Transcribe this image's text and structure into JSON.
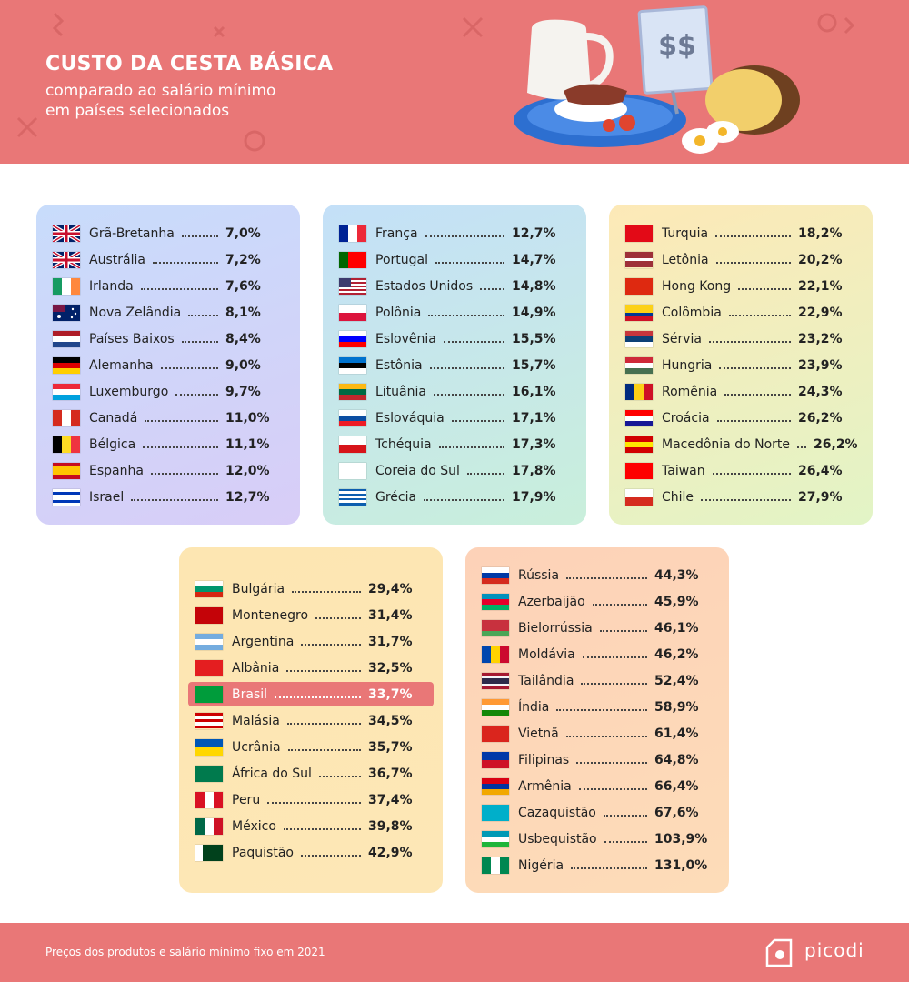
{
  "header": {
    "title": "CUSTO DA CESTA BÁSICA",
    "subtitle_lines": [
      "comparado ao salário mínimo",
      "em países selecionados"
    ],
    "sign": "$$"
  },
  "panels": [
    {
      "rows": [
        {
          "country": "Grã-Bretanha",
          "value": "7,0%"
        },
        {
          "country": "Austrália",
          "value": "7,2%"
        },
        {
          "country": "Irlanda",
          "value": "7,6%"
        },
        {
          "country": "Nova Zelândia",
          "value": "8,1%"
        },
        {
          "country": "Países Baixos",
          "value": "8,4%"
        },
        {
          "country": "Alemanha",
          "value": "9,0%"
        },
        {
          "country": "Luxemburgo",
          "value": "9,7%"
        },
        {
          "country": "Canadá",
          "value": "11,0%"
        },
        {
          "country": "Bélgica",
          "value": "11,1%"
        },
        {
          "country": "Espanha",
          "value": "12,0%"
        },
        {
          "country": "Israel",
          "value": "12,7%"
        }
      ]
    },
    {
      "rows": [
        {
          "country": "França",
          "value": "12,7%"
        },
        {
          "country": "Portugal",
          "value": "14,7%"
        },
        {
          "country": "Estados Unidos",
          "value": "14,8%"
        },
        {
          "country": "Polônia",
          "value": "14,9%"
        },
        {
          "country": "Eslovênia",
          "value": "15,5%"
        },
        {
          "country": "Estônia",
          "value": "15,7%"
        },
        {
          "country": "Lituânia",
          "value": "16,1%"
        },
        {
          "country": "Eslováquia",
          "value": "17,1%"
        },
        {
          "country": "Tchéquia",
          "value": "17,3%"
        },
        {
          "country": "Coreia do Sul",
          "value": "17,8%"
        },
        {
          "country": "Grécia",
          "value": "17,9%"
        }
      ]
    },
    {
      "rows": [
        {
          "country": "Turquia",
          "value": "18,2%"
        },
        {
          "country": "Letônia",
          "value": "20,2%"
        },
        {
          "country": "Hong Kong",
          "value": "22,1%"
        },
        {
          "country": "Colômbia",
          "value": "22,9%"
        },
        {
          "country": "Sérvia",
          "value": "23,2%"
        },
        {
          "country": "Hungria",
          "value": "23,9%"
        },
        {
          "country": "Romênia",
          "value": "24,3%"
        },
        {
          "country": "Croácia",
          "value": "26,2%"
        },
        {
          "country": "Macedônia do Norte",
          "value": "26,2%"
        },
        {
          "country": "Taiwan",
          "value": "26,4%"
        },
        {
          "country": "Chile",
          "value": "27,9%"
        }
      ]
    },
    {
      "rows": [
        {
          "country": "Bulgária",
          "value": "29,4%"
        },
        {
          "country": "Montenegro",
          "value": "31,4%"
        },
        {
          "country": "Argentina",
          "value": "31,7%"
        },
        {
          "country": "Albânia",
          "value": "32,5%"
        },
        {
          "country": "Brasil",
          "value": "33,7%"
        },
        {
          "country": "Malásia",
          "value": "34,5%"
        },
        {
          "country": "Ucrânia",
          "value": "35,7%"
        },
        {
          "country": "África do Sul",
          "value": "36,7%"
        },
        {
          "country": "Peru",
          "value": "37,4%"
        },
        {
          "country": "México",
          "value": "39,8%"
        },
        {
          "country": "Paquistão",
          "value": "42,9%"
        }
      ]
    },
    {
      "rows": [
        {
          "country": "Rússia",
          "value": "44,3%"
        },
        {
          "country": "Azerbaijão",
          "value": "45,9%"
        },
        {
          "country": "Bielorrússia",
          "value": "46,1%"
        },
        {
          "country": "Moldávia",
          "value": "46,2%"
        },
        {
          "country": "Tailândia",
          "value": "52,4%"
        },
        {
          "country": "Índia",
          "value": "58,9%"
        },
        {
          "country": "Vietnã",
          "value": "61,4%"
        },
        {
          "country": "Filipinas",
          "value": "64,8%"
        },
        {
          "country": "Armênia",
          "value": "66,4%"
        },
        {
          "country": "Cazaquistão",
          "value": "67,6%"
        },
        {
          "country": "Usbequistão",
          "value": "103,9%"
        },
        {
          "country": "Nigéria",
          "value": "131,0%"
        }
      ]
    }
  ],
  "footer": {
    "note": "Preços dos produtos e salário mínimo fixo em 2021",
    "logo": "picodi"
  }
}
